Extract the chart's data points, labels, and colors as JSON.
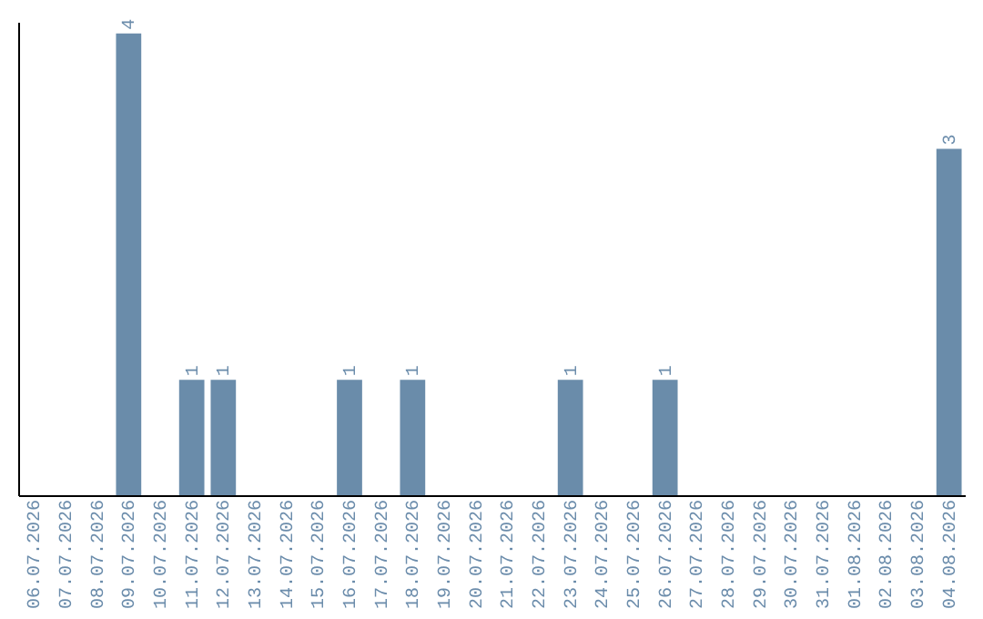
{
  "chart_data": {
    "type": "bar",
    "categories": [
      "06.07.2026",
      "07.07.2026",
      "08.07.2026",
      "09.07.2026",
      "10.07.2026",
      "11.07.2026",
      "12.07.2026",
      "13.07.2026",
      "14.07.2026",
      "15.07.2026",
      "16.07.2026",
      "17.07.2026",
      "18.07.2026",
      "19.07.2026",
      "20.07.2026",
      "21.07.2026",
      "22.07.2026",
      "23.07.2026",
      "24.07.2026",
      "25.07.2026",
      "26.07.2026",
      "27.07.2026",
      "28.07.2026",
      "29.07.2026",
      "30.07.2026",
      "31.07.2026",
      "01.08.2026",
      "02.08.2026",
      "03.08.2026",
      "04.08.2026"
    ],
    "values": [
      null,
      null,
      null,
      4,
      null,
      1,
      1,
      null,
      null,
      null,
      1,
      null,
      1,
      null,
      null,
      null,
      null,
      1,
      null,
      null,
      1,
      null,
      null,
      null,
      null,
      null,
      null,
      null,
      null,
      3
    ],
    "color": "#6a8caa",
    "ylim": [
      0,
      4.1
    ],
    "data_labels": true,
    "tick_labels": "x",
    "grid": false
  }
}
